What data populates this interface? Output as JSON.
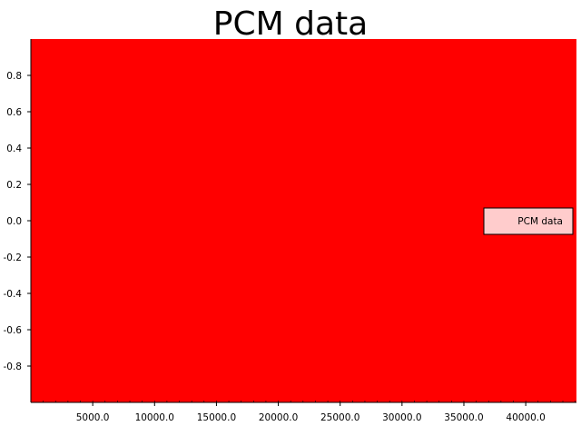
{
  "chart_data": {
    "type": "area",
    "title": "PCM data",
    "xlabel": "",
    "ylabel": "",
    "xlim": [
      0,
      44100
    ],
    "ylim": [
      -1.0,
      1.0
    ],
    "x_ticks": [
      5000,
      10000,
      15000,
      20000,
      25000,
      30000,
      35000,
      40000
    ],
    "x_tick_labels": [
      "5000.0",
      "10000.0",
      "15000.0",
      "20000.0",
      "25000.0",
      "30000.0",
      "35000.0",
      "40000.0"
    ],
    "y_ticks": [
      0.8,
      0.6,
      0.4,
      0.2,
      0.0,
      -0.2,
      -0.4,
      -0.6,
      -0.8
    ],
    "y_tick_labels": [
      "0.8",
      "0.6",
      "0.4",
      "0.2",
      "0.0",
      "-0.2",
      "-0.4",
      "-0.6",
      "-0.8"
    ],
    "series": [
      {
        "name": "PCM data",
        "fill_color": "#ff0000",
        "y_min": -1.0,
        "y_max": 1.0,
        "x_start": 0,
        "x_end": 44100
      }
    ],
    "legend": {
      "placement": "right",
      "entries": [
        "PCM data"
      ],
      "background": "#ffcccc"
    },
    "grid": false
  }
}
